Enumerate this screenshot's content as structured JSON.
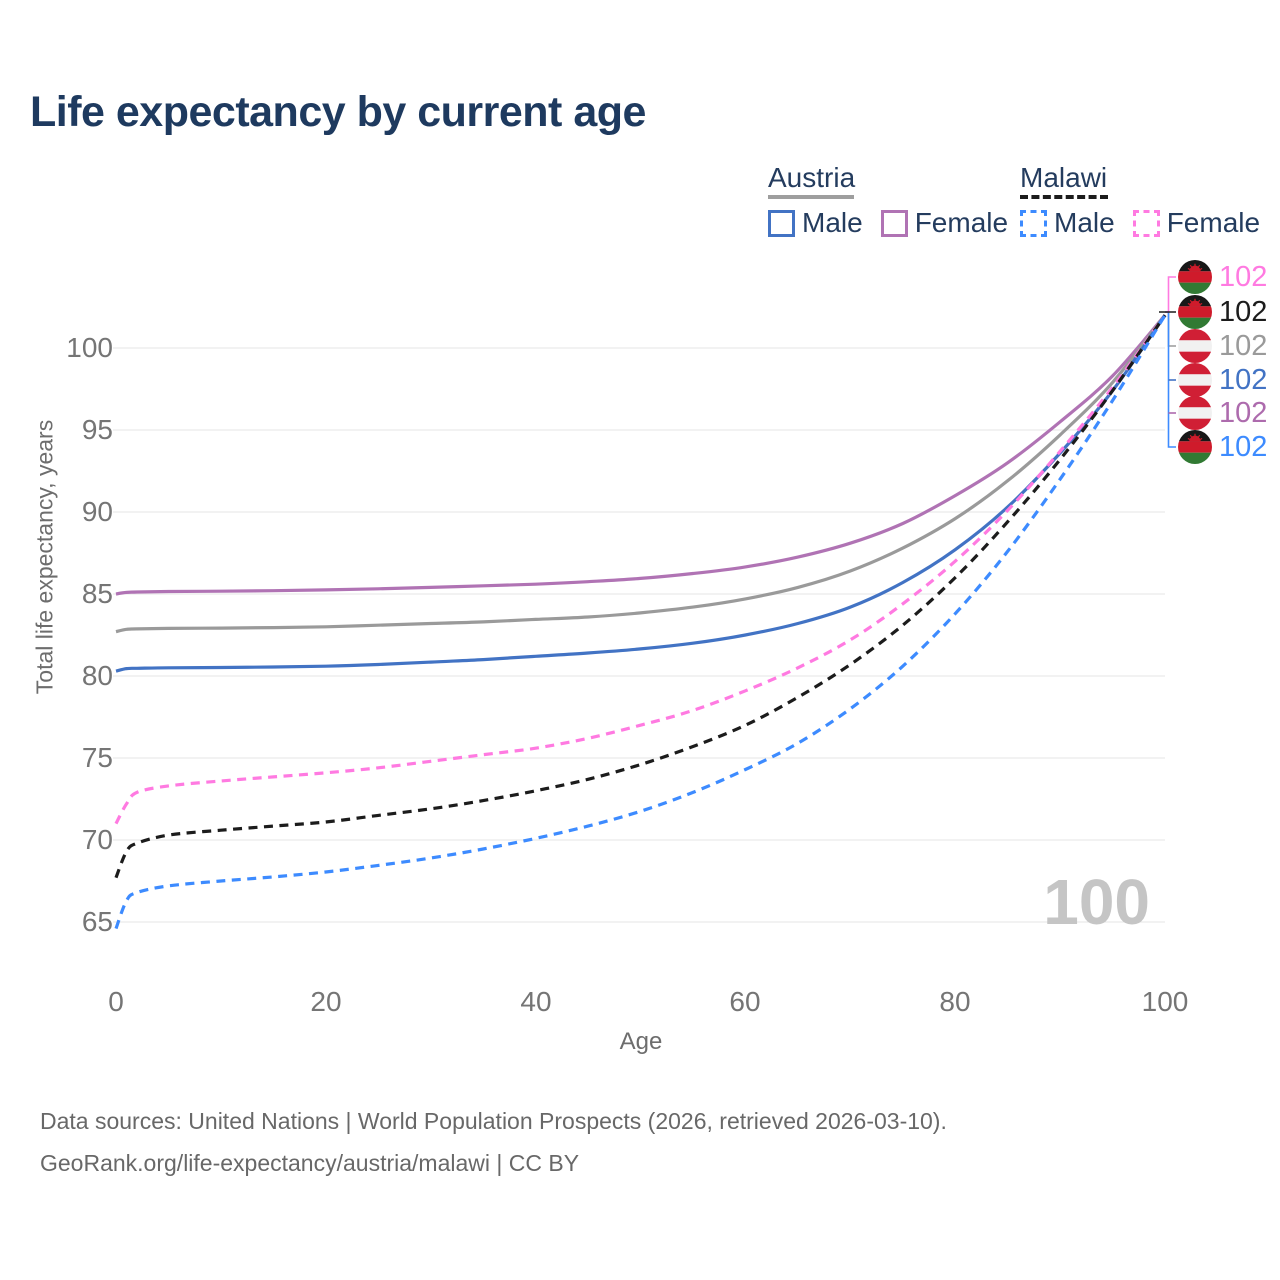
{
  "title": "Life expectancy by current age",
  "legend": {
    "groups": [
      {
        "label": "Austria",
        "line_style": "solid",
        "underline_color": "#9e9e9e",
        "items": [
          {
            "label": "Male",
            "color": "#4273c4"
          },
          {
            "label": "Female",
            "color": "#b073b4"
          }
        ]
      },
      {
        "label": "Malawi",
        "line_style": "dashed",
        "underline_color": "#1c1c1c",
        "items": [
          {
            "label": "Male",
            "color": "#3d8bff"
          },
          {
            "label": "Female",
            "color": "#ff7ae1"
          }
        ]
      }
    ]
  },
  "watermark_age": "100",
  "footer": {
    "line1": "Data sources: United Nations | World Population Prospects (2026, retrieved 2026-03-10).",
    "line2": "GeoRank.org/life-expectancy/austria/malawi | CC BY"
  },
  "chart_data": {
    "type": "line",
    "title": "Life expectancy by current age",
    "xlabel": "Age",
    "ylabel": "Total life expectancy, years",
    "x_ticks": [
      0,
      20,
      40,
      60,
      80,
      100
    ],
    "y_ticks": [
      65,
      70,
      75,
      80,
      85,
      90,
      95,
      100
    ],
    "xlim": [
      0,
      100
    ],
    "ylim": [
      63,
      103.5
    ],
    "grid": "horizontal",
    "legend_position": "top-right",
    "x": [
      0,
      1,
      2,
      5,
      10,
      15,
      20,
      25,
      30,
      35,
      40,
      45,
      50,
      55,
      60,
      65,
      70,
      75,
      80,
      85,
      90,
      95,
      100
    ],
    "series": [
      {
        "name": "Austria Female",
        "country": "Austria",
        "sex": "Female",
        "color": "#b073b4",
        "dash": "solid",
        "values": [
          85.0,
          85.1,
          85.12,
          85.15,
          85.17,
          85.2,
          85.25,
          85.32,
          85.4,
          85.5,
          85.6,
          85.75,
          85.95,
          86.25,
          86.65,
          87.25,
          88.1,
          89.3,
          91.0,
          93.0,
          95.5,
          98.3,
          102
        ],
        "end_label": 102
      },
      {
        "name": "Austria (both sexes)",
        "country": "Austria",
        "sex": "Both",
        "color": "#9a9a9a",
        "dash": "solid",
        "values": [
          82.7,
          82.85,
          82.87,
          82.9,
          82.92,
          82.95,
          83.0,
          83.1,
          83.2,
          83.3,
          83.45,
          83.6,
          83.85,
          84.2,
          84.7,
          85.4,
          86.4,
          87.8,
          89.6,
          91.9,
          94.7,
          97.9,
          102
        ],
        "end_label": 102
      },
      {
        "name": "Austria Male",
        "country": "Austria",
        "sex": "Male",
        "color": "#4273c4",
        "dash": "solid",
        "values": [
          80.3,
          80.45,
          80.47,
          80.5,
          80.52,
          80.55,
          80.6,
          80.7,
          80.85,
          81.0,
          81.2,
          81.4,
          81.65,
          82.0,
          82.5,
          83.2,
          84.2,
          85.7,
          87.7,
          90.3,
          93.6,
          97.4,
          102
        ],
        "end_label": 102
      },
      {
        "name": "Malawi Female",
        "country": "Malawi",
        "sex": "Female",
        "color": "#ff7ae1",
        "dash": "dashed",
        "values": [
          71.0,
          72.2,
          72.9,
          73.3,
          73.6,
          73.85,
          74.1,
          74.4,
          74.8,
          75.2,
          75.6,
          76.2,
          77.0,
          77.9,
          79.1,
          80.5,
          82.2,
          84.4,
          87.0,
          90.1,
          93.7,
          97.6,
          102
        ],
        "end_label": 102
      },
      {
        "name": "Malawi (both sexes)",
        "country": "Malawi",
        "sex": "Both",
        "color": "#1c1c1c",
        "dash": "dashed",
        "values": [
          67.7,
          69.3,
          69.8,
          70.3,
          70.6,
          70.85,
          71.1,
          71.5,
          71.9,
          72.4,
          73.0,
          73.7,
          74.6,
          75.7,
          77.0,
          78.7,
          80.7,
          83.1,
          86.0,
          89.4,
          93.2,
          97.4,
          102
        ],
        "end_label": 102
      },
      {
        "name": "Malawi Male",
        "country": "Malawi",
        "sex": "Male",
        "color": "#3d8bff",
        "dash": "dashed",
        "values": [
          64.6,
          66.3,
          66.8,
          67.2,
          67.5,
          67.75,
          68.05,
          68.45,
          68.9,
          69.45,
          70.1,
          70.85,
          71.75,
          72.9,
          74.3,
          75.9,
          78.0,
          80.6,
          83.8,
          87.6,
          92.0,
          96.8,
          102
        ],
        "end_label": 102
      }
    ],
    "end_labels": [
      {
        "value": "102",
        "flag": "malawi",
        "series": "Malawi Female",
        "color": "#ff7ae1"
      },
      {
        "value": "102",
        "flag": "malawi",
        "series": "Malawi (both sexes)",
        "color": "#1c1c1c"
      },
      {
        "value": "102",
        "flag": "austria",
        "series": "Austria (both sexes)",
        "color": "#9a9a9a"
      },
      {
        "value": "102",
        "flag": "austria",
        "series": "Austria Male",
        "color": "#4273c4"
      },
      {
        "value": "102",
        "flag": "austria",
        "series": "Austria Female",
        "color": "#ad6bad"
      },
      {
        "value": "102",
        "flag": "malawi",
        "series": "Malawi Male",
        "color": "#3d8bff"
      }
    ]
  }
}
